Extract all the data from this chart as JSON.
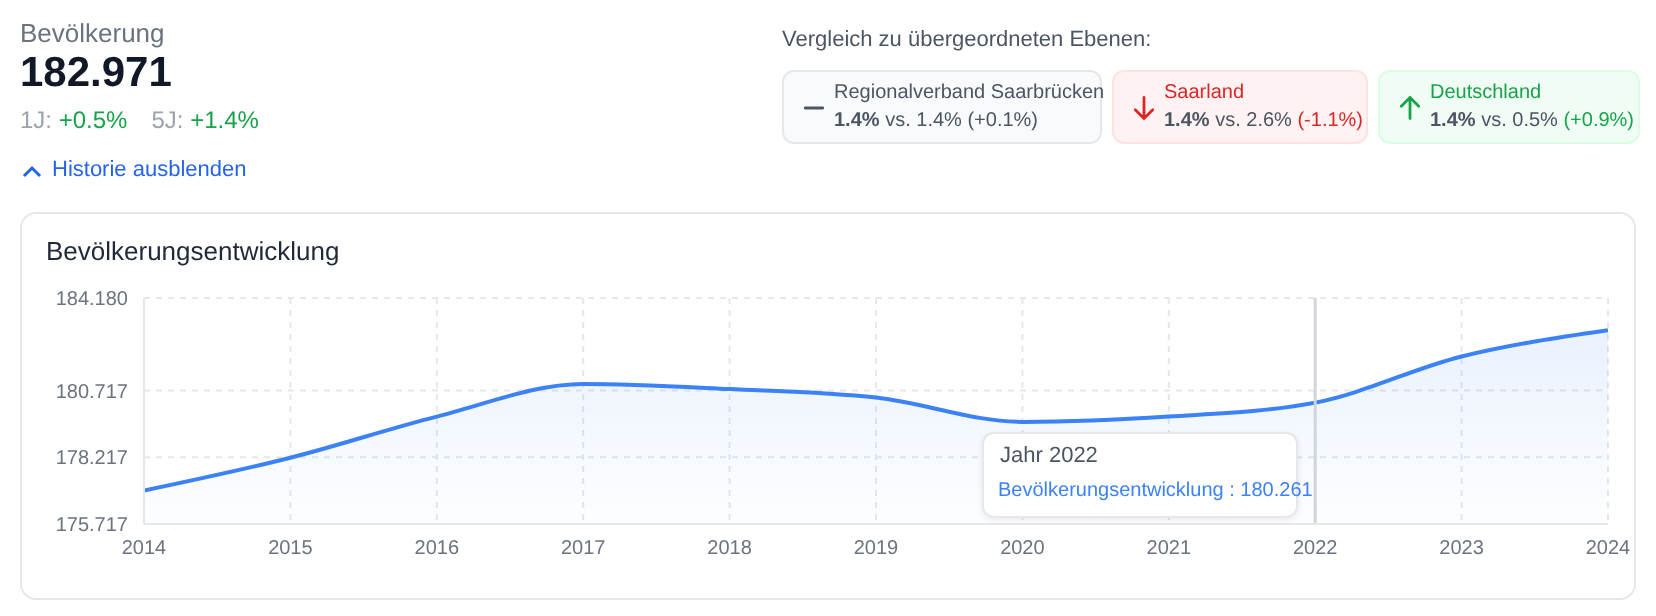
{
  "chart_data": {
    "type": "area",
    "title": "Bevölkerungsentwicklung",
    "x": [
      2014,
      2015,
      2016,
      2017,
      2018,
      2019,
      2020,
      2021,
      2022,
      2023,
      2024
    ],
    "series": [
      {
        "color": "#3b82f6",
        "values": [
          176.97,
          178.2,
          179.74,
          180.96,
          180.77,
          180.45,
          179.54,
          179.74,
          180.261,
          181.99,
          182.971
        ]
      }
    ],
    "xlim": [
      2014,
      2024
    ],
    "xticks": [
      2014,
      2015,
      2016,
      2017,
      2018,
      2019,
      2020,
      2021,
      2022,
      2023,
      2024
    ],
    "ylim": [
      175.717,
      184.18
    ],
    "yticks": [
      175.717,
      178.217,
      180.717,
      {
        "value": 184.18,
        "label": "184.180"
      }
    ],
    "grid": true,
    "marker": "none",
    "line_style": "solid",
    "ref_lines": [
      {
        "axis": "x",
        "value": 2022,
        "color": "#d1d5db"
      }
    ],
    "annotations": [
      "Bevölkerung",
      "182.971",
      "1J:",
      "+0.5%",
      "5J:",
      "+1.4%",
      "Historie ausblenden",
      "Vergleich zu übergeordneten Ebenen:",
      "Regionalverband Saarbrücken",
      "1.4%",
      "vs. 1.4%",
      "(+0.1%)",
      "Saarland",
      "1.4%",
      "vs. 2.6%",
      "(-1.1%)",
      "Deutschland",
      "1.4%",
      "vs. 0.5%",
      "(+0.9%)",
      "Jahr 2022",
      "Bevölkerungsentwicklung : 180.261"
    ]
  }
}
